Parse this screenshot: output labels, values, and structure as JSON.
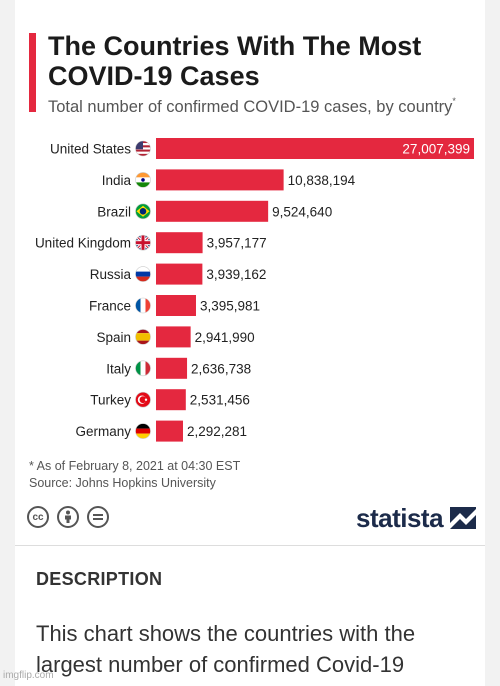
{
  "chart_data": {
    "type": "bar",
    "orientation": "horizontal",
    "title": "The Countries With The Most\nCOVID-19 Cases",
    "subtitle": "Total number of confirmed COVID-19 cases, by country",
    "subtitle_marker": "*",
    "categories": [
      "United States",
      "India",
      "Brazil",
      "United Kingdom",
      "Russia",
      "France",
      "Spain",
      "Italy",
      "Turkey",
      "Germany"
    ],
    "values": [
      27007399,
      10838194,
      9524640,
      3957177,
      3939162,
      3395981,
      2941990,
      2636738,
      2531456,
      2292281
    ],
    "value_labels": [
      "27,007,399",
      "10,838,194",
      "9,524,640",
      "3,957,177",
      "3,939,162",
      "3,395,981",
      "2,941,990",
      "2,636,738",
      "2,531,456",
      "2,292,281"
    ],
    "flags": [
      "us-flag-icon",
      "india-flag-icon",
      "brazil-flag-icon",
      "uk-flag-icon",
      "russia-flag-icon",
      "france-flag-icon",
      "spain-flag-icon",
      "italy-flag-icon",
      "turkey-flag-icon",
      "germany-flag-icon"
    ],
    "xlim": [
      0,
      27007399
    ],
    "bar_color": "#e4283f",
    "grid": false,
    "legend": "none"
  },
  "footnote": {
    "asof": "* As of February 8, 2021 at 04:30 EST",
    "source": "Source: Johns Hopkins University"
  },
  "license_icons": [
    "cc-icon",
    "attribution-icon",
    "no-derivatives-icon"
  ],
  "brand": {
    "name": "statista"
  },
  "description": {
    "heading": "DESCRIPTION",
    "text": "This chart shows the countries with the largest number of confirmed Covid-19"
  },
  "watermark": "imgflip.com"
}
